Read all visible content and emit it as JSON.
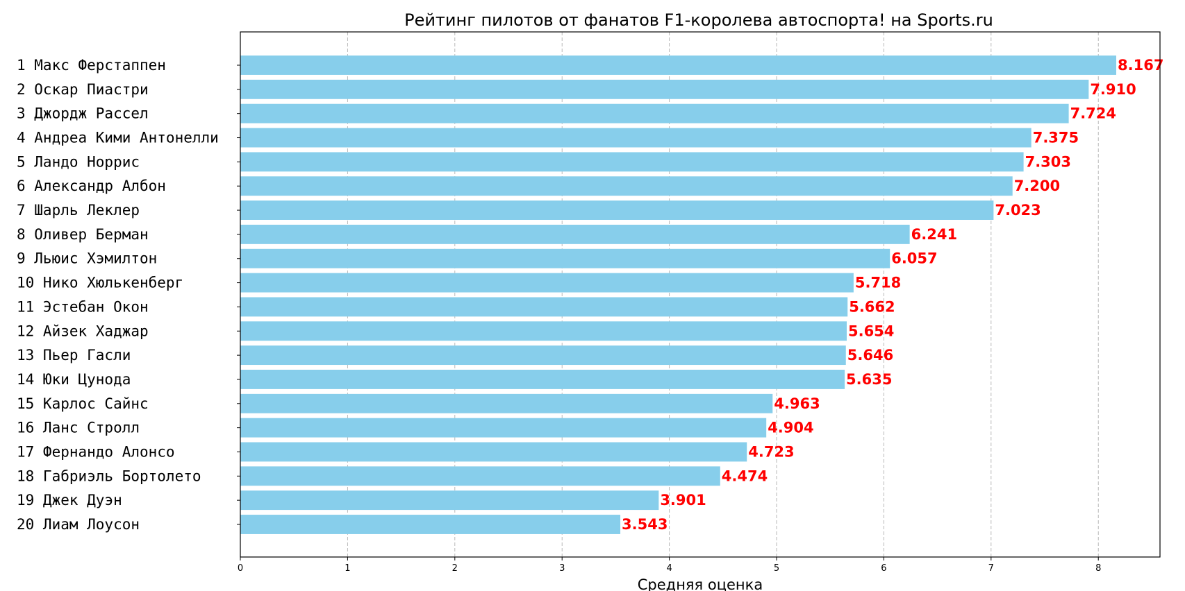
{
  "chart_data": {
    "type": "bar",
    "orientation": "horizontal",
    "title": "Рейтинг пилотов от фанатов F1-королева автоспорта! на Sports.ru",
    "xlabel": "Средняя оценка",
    "ylabel": "",
    "xlim": [
      0,
      8.575
    ],
    "xticks": [
      0,
      1,
      2,
      3,
      4,
      5,
      6,
      7,
      8
    ],
    "grid": "x-dashed",
    "bar_color": "#87ceeb",
    "value_label_color": "#ff0000",
    "categories": [
      "1 Макс Ферстаппен",
      "2 Оскар Пиастри",
      "3 Джордж Рассел",
      "4 Андреа Кими Антонелли",
      "5 Ландо Норрис",
      "6 Александр Албон",
      "7 Шарль Леклер",
      "8 Оливер Берман",
      "9 Льюис Хэмилтон",
      "10 Нико Хюлькенберг",
      "11 Эстебан Окон",
      "12 Айзек Хаджар",
      "13 Пьер Гасли",
      "14 Юки Цунода",
      "15 Карлос Сайнс",
      "16 Ланс Стролл",
      "17 Фернандо Алонсо",
      "18 Габриэль Бортолето",
      "19 Джек Дуэн",
      "20 Лиам Лоусон"
    ],
    "values": [
      8.167,
      7.91,
      7.724,
      7.375,
      7.303,
      7.2,
      7.023,
      6.241,
      6.057,
      5.718,
      5.662,
      5.654,
      5.646,
      5.635,
      4.963,
      4.904,
      4.723,
      4.474,
      3.901,
      3.543
    ],
    "value_labels": [
      "8.167",
      "7.910",
      "7.724",
      "7.375",
      "7.303",
      "7.200",
      "7.023",
      "6.241",
      "6.057",
      "5.718",
      "5.662",
      "5.654",
      "5.646",
      "5.635",
      "4.963",
      "4.904",
      "4.723",
      "4.474",
      "3.901",
      "3.543"
    ]
  }
}
